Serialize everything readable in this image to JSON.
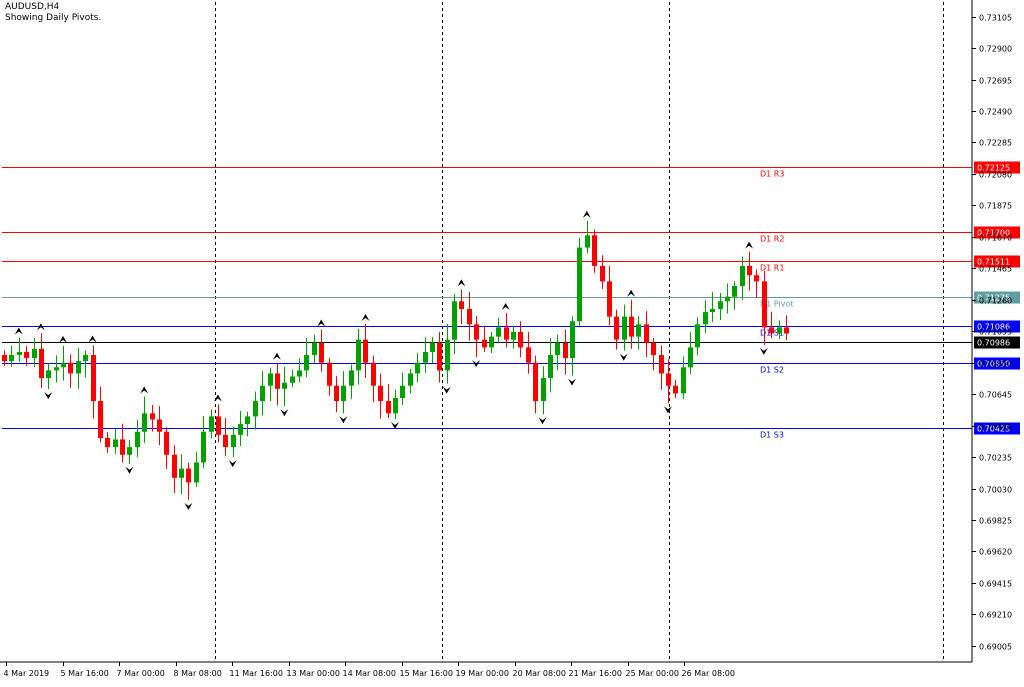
{
  "header": {
    "symbol": "AUDUSD,H4",
    "indicator": "Showing Daily Pivots."
  },
  "colors": {
    "up_candle": "#00a000",
    "down_candle": "#ff0000",
    "resistance": "#ff0000",
    "pivot": "#5f9ea0",
    "support": "#0000ff",
    "current_price": "#000000",
    "fractal": "#000000"
  },
  "chart_data": {
    "type": "candlestick",
    "symbol": "AUDUSD",
    "timeframe": "H4",
    "ylim": [
      0.689,
      0.732
    ],
    "y_ticks": [
      "0.73105",
      "0.72900",
      "0.72695",
      "0.72490",
      "0.72285",
      "0.72080",
      "0.71875",
      "0.71670",
      "0.71465",
      "0.71260",
      "0.71055",
      "0.70850",
      "0.70645",
      "0.70440",
      "0.70235",
      "0.70030",
      "0.69825",
      "0.69620",
      "0.69415",
      "0.69210",
      "0.69005"
    ],
    "x_ticks": [
      "4 Mar 2019",
      "5 Mar 16:00",
      "7 Mar 00:00",
      "8 Mar 08:00",
      "11 Mar 16:00",
      "13 Mar 00:00",
      "14 Mar 08:00",
      "15 Mar 16:00",
      "19 Mar 00:00",
      "20 Mar 08:00",
      "21 Mar 16:00",
      "25 Mar 00:00",
      "26 Mar 08:00"
    ],
    "session_separators_after_tick": [
      3,
      7,
      11
    ],
    "pivot_levels": [
      {
        "name": "D1 R3",
        "value": 0.72125,
        "label": "0.72125",
        "kind": "resistance"
      },
      {
        "name": "D1 R2",
        "value": 0.717,
        "label": "0.71700",
        "kind": "resistance"
      },
      {
        "name": "D1 R1",
        "value": 0.71511,
        "label": "0.71511",
        "kind": "resistance"
      },
      {
        "name": "D1 Pivot",
        "value": 0.71275,
        "label": "0.71275",
        "kind": "pivot"
      },
      {
        "name": "D1 S1",
        "value": 0.71086,
        "label": "0.71086",
        "kind": "support"
      },
      {
        "name": "D1 S2",
        "value": 0.7085,
        "label": "0.70850",
        "kind": "support"
      },
      {
        "name": "D1 S3",
        "value": 0.70425,
        "label": "0.70425",
        "kind": "support"
      }
    ],
    "current_price": {
      "value": 0.70986,
      "label": "0.70986"
    },
    "candles_close": [
      0.7086,
      0.709,
      0.7092,
      0.7088,
      0.7094,
      0.7075,
      0.708,
      0.7082,
      0.7085,
      0.7078,
      0.7086,
      0.709,
      0.706,
      0.7036,
      0.703,
      0.7035,
      0.7025,
      0.703,
      0.704,
      0.7052,
      0.7048,
      0.704,
      0.7025,
      0.701,
      0.7016,
      0.7007,
      0.702,
      0.704,
      0.705,
      0.7038,
      0.703,
      0.7038,
      0.7045,
      0.705,
      0.706,
      0.707,
      0.7078,
      0.7068,
      0.7072,
      0.7076,
      0.708,
      0.709,
      0.7098,
      0.7085,
      0.707,
      0.706,
      0.707,
      0.708,
      0.71,
      0.7085,
      0.707,
      0.706,
      0.7052,
      0.7062,
      0.707,
      0.7078,
      0.7085,
      0.7092,
      0.7098,
      0.708,
      0.71,
      0.7125,
      0.712,
      0.711,
      0.71,
      0.7095,
      0.7102,
      0.7108,
      0.71,
      0.7105,
      0.7095,
      0.7085,
      0.706,
      0.7075,
      0.709,
      0.7098,
      0.7088,
      0.7112,
      0.716,
      0.7168,
      0.7148,
      0.7138,
      0.7115,
      0.71,
      0.7115,
      0.7102,
      0.711,
      0.7098,
      0.709,
      0.7078,
      0.707,
      0.7065,
      0.7082,
      0.7095,
      0.711,
      0.7118,
      0.712,
      0.7125,
      0.7128,
      0.7135,
      0.7148,
      0.7142,
      0.7138,
      0.7108,
      0.7104,
      0.7108,
      0.7104
    ]
  }
}
